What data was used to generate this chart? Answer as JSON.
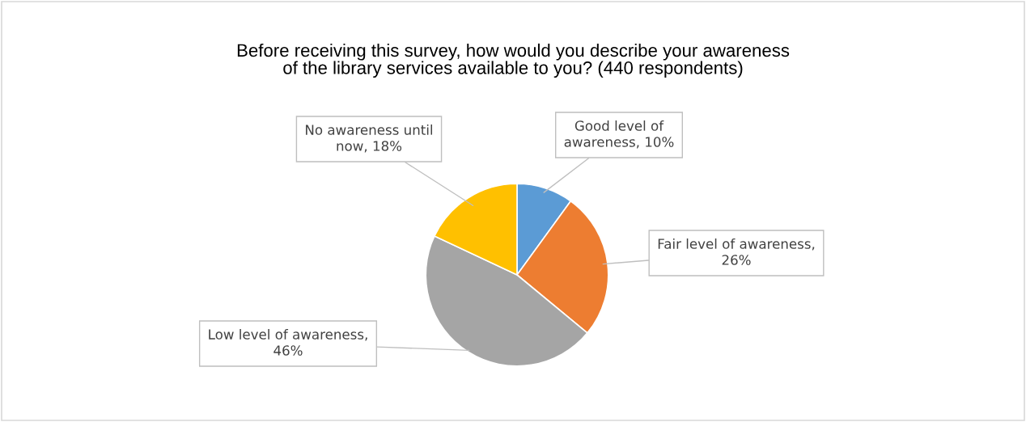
{
  "chart_data": {
    "type": "pie",
    "title": "Before receiving this survey, how would you describe your awareness of the library services available to you? (440 respondents)",
    "categories": [
      "Good level of awareness, 10%",
      "Fair level of awareness, 26%",
      "Low level of awareness, 46%",
      "No awareness until now, 18%"
    ],
    "values": [
      10,
      26,
      46,
      18
    ],
    "colors": [
      "#5b9bd5",
      "#ed7d31",
      "#a5a5a5",
      "#ffc000"
    ],
    "legend": false
  }
}
